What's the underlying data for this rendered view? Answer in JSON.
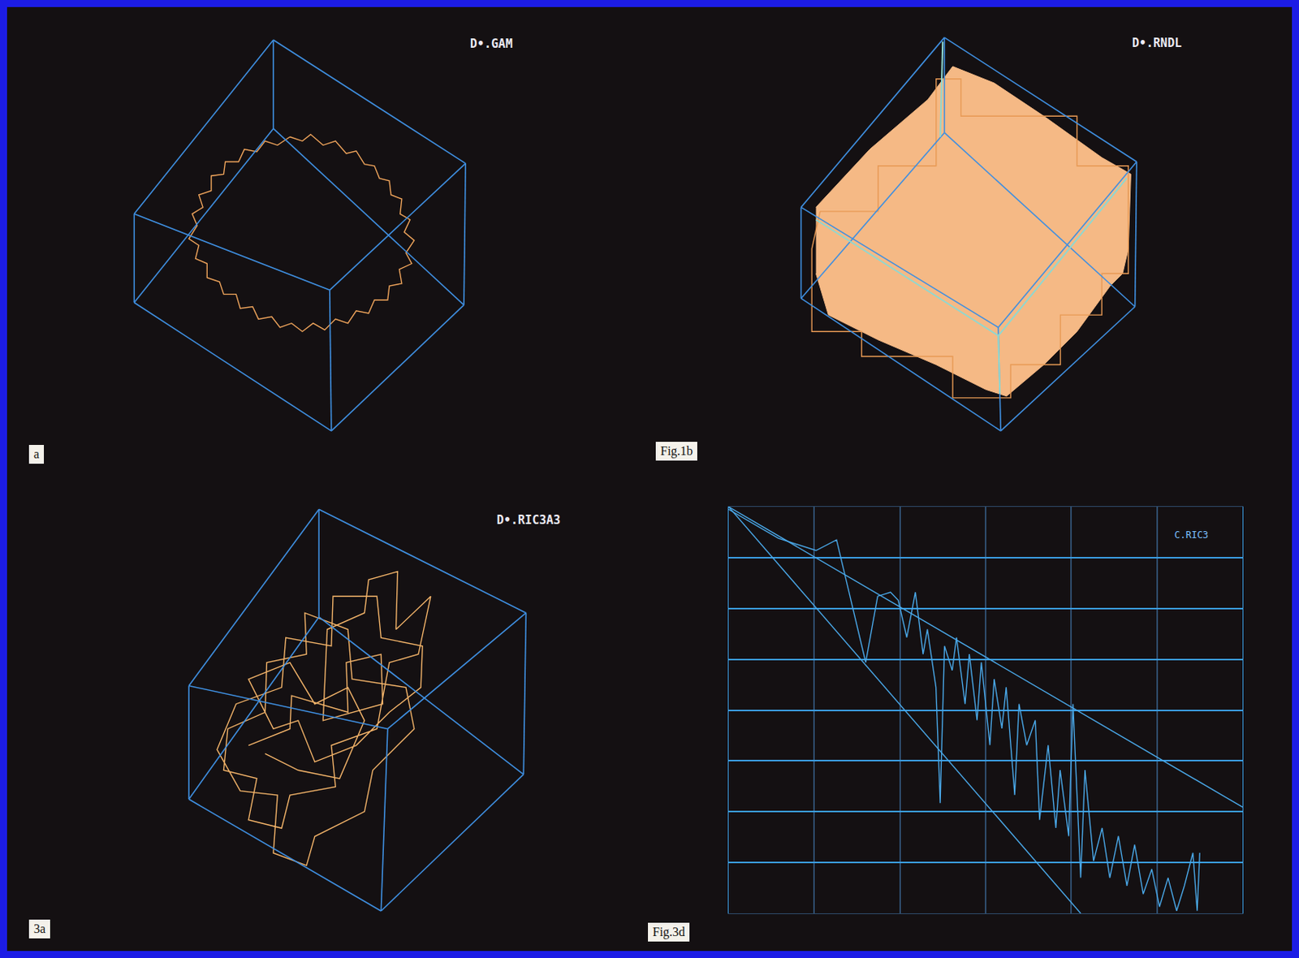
{
  "chart_data": [
    {
      "type": "line",
      "title": "D•.GAM",
      "label": "a",
      "tick_labels": false,
      "grid": false,
      "xlim": [
        35,
        785
      ],
      "ylim": [
        570,
        30
      ],
      "series": [
        {
          "color": "#f0a55c",
          "x": [
            350,
            365,
            375,
            390,
            405,
            418,
            430,
            440,
            452,
            458,
            470,
            472,
            485,
            483,
            495,
            488,
            500,
            490,
            497,
            482,
            485,
            470,
            468,
            452,
            445,
            430,
            420,
            405,
            392,
            378,
            365,
            352,
            338,
            328,
            312,
            305,
            290,
            285,
            270,
            265,
            250,
            250,
            236,
            240,
            228,
            238,
            232,
            245,
            240,
            255,
            255,
            270,
            272,
            288,
            295,
            310,
            320,
            335,
            350
          ],
          "values": [
            165,
            170,
            162,
            175,
            170,
            185,
            182,
            198,
            200,
            215,
            218,
            235,
            240,
            258,
            265,
            280,
            290,
            305,
            318,
            325,
            342,
            345,
            362,
            362,
            378,
            375,
            390,
            385,
            398,
            390,
            400,
            390,
            395,
            382,
            385,
            370,
            372,
            355,
            355,
            340,
            335,
            318,
            312,
            296,
            288,
            272,
            258,
            250,
            235,
            230,
            212,
            210,
            195,
            195,
            180,
            183,
            170,
            175,
            165
          ]
        }
      ]
    },
    {
      "type": "line",
      "title": "D•.RNDL",
      "label": "Fig.1b",
      "tick_labels": false,
      "grid": false,
      "xlim": [
        785,
        1550
      ],
      "ylim": [
        570,
        30
      ],
      "series": [
        {
          "type": "area",
          "color": "#f5b985",
          "x": [
            985,
            1050,
            1120,
            1150,
            1200,
            1260,
            1330,
            1365,
            1362,
            1355,
            1340,
            1300,
            1260,
            1215,
            1190,
            1130,
            1060,
            1000,
            985
          ],
          "values": [
            250,
            180,
            120,
            80,
            100,
            140,
            190,
            210,
            300,
            330,
            345,
            400,
            440,
            478,
            470,
            440,
            410,
            380,
            330
          ]
        },
        {
          "type": "line",
          "color": "#e89a55",
          "x": [
            990,
            1060,
            1060,
            1130,
            1130,
            1160,
            1160,
            1300,
            1300,
            1362,
            1362,
            1330,
            1330,
            1280,
            1280,
            1220,
            1220,
            1150,
            1150,
            1040,
            1040,
            980,
            980,
            990
          ],
          "values": [
            255,
            255,
            200,
            200,
            95,
            95,
            140,
            140,
            200,
            200,
            330,
            330,
            380,
            380,
            440,
            440,
            480,
            480,
            430,
            430,
            400,
            400,
            300,
            255
          ]
        }
      ]
    },
    {
      "type": "line",
      "title": "D•.RIC3A3",
      "label": "3a",
      "tick_labels": false,
      "grid": false,
      "xlim": [
        35,
        785
      ],
      "ylim": [
        1135,
        575
      ],
      "series": [
        {
          "color": "#f3b46a",
          "x": [
            300,
            350,
            352,
            420,
            418,
            460,
            462,
            390,
            395,
            440,
            445,
            480,
            478,
            520,
            505,
            470,
            455,
            400,
            405,
            350,
            340,
            300,
            310,
            270,
            275,
            320,
            322,
            370,
            368,
            420,
            425,
            490,
            500,
            450,
            440,
            380,
            370,
            330,
            335,
            290,
            262,
            285,
            340,
            345,
            400,
            402,
            455,
            460,
            510,
            508,
            470,
            430,
            380,
            360,
            330,
            300,
            350,
            380,
            420,
            440,
            410,
            360,
            320
          ],
          "values": [
            900,
            880,
            840,
            860,
            800,
            790,
            850,
            870,
            760,
            740,
            700,
            690,
            760,
            720,
            790,
            800,
            880,
            900,
            950,
            960,
            1000,
            990,
            940,
            930,
            880,
            860,
            800,
            790,
            740,
            760,
            820,
            830,
            880,
            930,
            980,
            1010,
            1045,
            1030,
            960,
            955,
            905,
            850,
            830,
            770,
            780,
            720,
            720,
            770,
            780,
            830,
            860,
            900,
            920,
            870,
            880,
            820,
            800,
            850,
            830,
            870,
            940,
            930,
            910
          ]
        }
      ]
    },
    {
      "type": "line",
      "title": "C.RIC3",
      "label": "Fig.3d",
      "tick_labels": false,
      "grid": true,
      "xlim": [
        0,
        6
      ],
      "ylim": [
        0,
        8
      ],
      "xticks": [
        0,
        1,
        2,
        3,
        4,
        5,
        6
      ],
      "yticks": [
        0,
        1,
        2,
        3,
        4,
        5,
        6,
        7,
        8
      ],
      "series": [
        {
          "color": "#4aa8e8",
          "x": [
            0,
            0.58,
            1.02,
            1.26,
            1.6,
            1.74,
            1.89,
            1.98,
            2.08,
            2.18,
            2.27,
            2.32,
            2.42,
            2.47,
            2.52,
            2.61,
            2.66,
            2.76,
            2.81,
            2.9,
            2.95,
            3.05,
            3.1,
            3.19,
            3.24,
            3.34,
            3.39,
            3.48,
            3.58,
            3.63,
            3.73,
            3.82,
            3.87,
            3.97,
            4.02,
            4.07,
            4.11,
            4.16,
            4.26,
            4.36,
            4.45,
            4.55,
            4.65,
            4.74,
            4.84,
            4.94,
            5.03,
            5.13,
            5.23,
            5.32,
            5.42,
            5.47,
            5.5
          ],
          "values": [
            7.95,
            7.38,
            7.14,
            7.35,
            4.94,
            6.24,
            6.32,
            6.16,
            5.43,
            6.32,
            5.1,
            5.59,
            4.45,
            2.17,
            5.26,
            4.78,
            5.43,
            4.12,
            5.1,
            3.8,
            4.94,
            3.31,
            4.61,
            3.64,
            4.45,
            2.33,
            4.12,
            3.31,
            3.8,
            1.84,
            3.31,
            1.68,
            2.82,
            1.52,
            4.12,
            2.33,
            0.7,
            2.82,
            1.03,
            1.68,
            0.7,
            1.52,
            0.54,
            1.35,
            0.38,
            0.87,
            0.13,
            0.7,
            0.05,
            0.54,
            1.19,
            0.05,
            1.19
          ]
        },
        {
          "color": "#4aa8e8",
          "x": [
            0,
            6
          ],
          "values": [
            8,
            2.09
          ]
        },
        {
          "color": "#4aa8e8",
          "x": [
            0,
            4.11
          ],
          "values": [
            8,
            0
          ]
        }
      ]
    }
  ]
}
